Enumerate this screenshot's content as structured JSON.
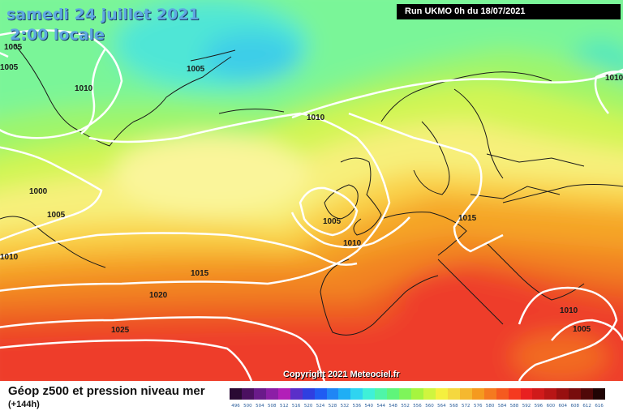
{
  "header": {
    "date": "samedi 24 juillet 2021",
    "time": "2:00 locale",
    "run": "Run UKMO 0h du 18/07/2021"
  },
  "map": {
    "isobar_labels": [
      {
        "id": "l1005a",
        "text": "1005"
      },
      {
        "id": "l1005b",
        "text": "1005"
      },
      {
        "id": "l1005c",
        "text": "1005"
      },
      {
        "id": "l1010a",
        "text": "1010"
      },
      {
        "id": "l1010b",
        "text": "1010"
      },
      {
        "id": "l1000",
        "text": "1000"
      },
      {
        "id": "l1005d",
        "text": "1005"
      },
      {
        "id": "l1005e",
        "text": "1005"
      },
      {
        "id": "l1010c",
        "text": "1010"
      },
      {
        "id": "l1010d",
        "text": "1010"
      },
      {
        "id": "l1015a",
        "text": "1015"
      },
      {
        "id": "l1015b",
        "text": "1015"
      },
      {
        "id": "l1020",
        "text": "1020"
      },
      {
        "id": "l1025",
        "text": "1025"
      },
      {
        "id": "l1010e",
        "text": "1010"
      },
      {
        "id": "l1005f",
        "text": "1005"
      },
      {
        "id": "l1010f",
        "text": "1010"
      }
    ],
    "copyright": "Copyright 2021 Meteociel.fr"
  },
  "legend": {
    "title": "Géop z500 et pression niveau mer",
    "subtitle": "(+144h)",
    "ticks": [
      "496",
      "500",
      "504",
      "508",
      "512",
      "516",
      "520",
      "524",
      "528",
      "532",
      "536",
      "540",
      "544",
      "548",
      "552",
      "556",
      "560",
      "564",
      "568",
      "572",
      "576",
      "580",
      "584",
      "588",
      "592",
      "596",
      "600",
      "604",
      "608",
      "612",
      "616"
    ],
    "colors": [
      "#2a0a33",
      "#4b1060",
      "#6a1a8a",
      "#8c1ea6",
      "#b21fb8",
      "#5a2fc9",
      "#2f3fe0",
      "#1f5cf2",
      "#1f86f5",
      "#1faef5",
      "#2fd4f0",
      "#3ff0d8",
      "#4ff5a8",
      "#5ff57a",
      "#7ef55a",
      "#a6f53f",
      "#cff53f",
      "#f5f03f",
      "#f5d83f",
      "#f5b82f",
      "#f59a1f",
      "#f57a1f",
      "#f55a1f",
      "#f53a1f",
      "#e82020",
      "#d01a1a",
      "#b81515",
      "#981010",
      "#780c0c",
      "#500808",
      "#200404"
    ]
  }
}
